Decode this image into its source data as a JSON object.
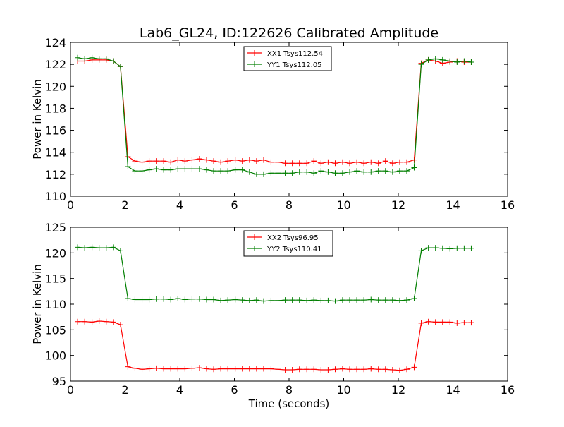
{
  "title": "Lab6_GL24, ID:122626 Calibrated Amplitude",
  "chart_data": [
    {
      "type": "line",
      "ylabel": "Power in Kelvin",
      "xlabel": "",
      "xlim": [
        0,
        16
      ],
      "ylim": [
        110,
        124
      ],
      "xticks": [
        "0",
        "2",
        "4",
        "6",
        "8",
        "10",
        "12",
        "14",
        "16"
      ],
      "yticks": [
        "110",
        "112",
        "114",
        "116",
        "118",
        "120",
        "122",
        "124"
      ],
      "legend_position": "upper-center",
      "x": [
        0.26,
        0.52,
        0.79,
        1.05,
        1.31,
        1.57,
        1.83,
        2.1,
        2.36,
        2.62,
        2.88,
        3.14,
        3.41,
        3.67,
        3.93,
        4.19,
        4.45,
        4.72,
        4.98,
        5.24,
        5.5,
        5.76,
        6.03,
        6.29,
        6.55,
        6.81,
        7.07,
        7.34,
        7.6,
        7.86,
        8.12,
        8.38,
        8.65,
        8.91,
        9.17,
        9.43,
        9.69,
        9.96,
        10.22,
        10.48,
        10.74,
        11.0,
        11.27,
        11.53,
        11.79,
        12.05,
        12.31,
        12.58,
        12.84,
        13.1,
        13.36,
        13.62,
        13.89,
        14.15,
        14.41,
        14.67
      ],
      "series": [
        {
          "name": "XX1 Tsys112.54",
          "color": "#ff0000",
          "values": [
            122.3,
            122.3,
            122.4,
            122.4,
            122.4,
            122.3,
            121.8,
            113.6,
            113.2,
            113.1,
            113.2,
            113.2,
            113.2,
            113.1,
            113.3,
            113.2,
            113.3,
            113.4,
            113.3,
            113.2,
            113.1,
            113.2,
            113.3,
            113.2,
            113.3,
            113.2,
            113.3,
            113.1,
            113.1,
            113.0,
            113.0,
            113.0,
            113.0,
            113.2,
            113.0,
            113.1,
            113.0,
            113.1,
            113.0,
            113.1,
            113.0,
            113.1,
            113.0,
            113.2,
            113.0,
            113.1,
            113.1,
            113.3,
            122.1,
            122.4,
            122.3,
            122.1,
            122.2,
            122.3,
            122.2,
            122.2
          ]
        },
        {
          "name": "YY1 Tsys112.05",
          "color": "#007f00",
          "values": [
            122.6,
            122.5,
            122.6,
            122.5,
            122.5,
            122.3,
            121.8,
            112.7,
            112.3,
            112.3,
            112.4,
            112.5,
            112.4,
            112.4,
            112.5,
            112.5,
            112.5,
            112.5,
            112.4,
            112.3,
            112.3,
            112.3,
            112.4,
            112.4,
            112.2,
            112.0,
            112.0,
            112.1,
            112.1,
            112.1,
            112.1,
            112.2,
            112.2,
            112.1,
            112.3,
            112.2,
            112.1,
            112.1,
            112.2,
            112.3,
            112.2,
            112.2,
            112.3,
            112.3,
            112.2,
            112.3,
            112.3,
            112.6,
            122.0,
            122.4,
            122.5,
            122.4,
            122.3,
            122.2,
            122.3,
            122.2
          ]
        }
      ]
    },
    {
      "type": "line",
      "ylabel": "Power in Kelvin",
      "xlabel": "Time (seconds)",
      "xlim": [
        0,
        16
      ],
      "ylim": [
        95,
        125
      ],
      "xticks": [
        "0",
        "2",
        "4",
        "6",
        "8",
        "10",
        "12",
        "14",
        "16"
      ],
      "yticks": [
        "95",
        "100",
        "105",
        "110",
        "115",
        "120",
        "125"
      ],
      "legend_position": "upper-center",
      "x": [
        0.26,
        0.52,
        0.79,
        1.05,
        1.31,
        1.57,
        1.83,
        2.1,
        2.36,
        2.62,
        2.88,
        3.14,
        3.41,
        3.67,
        3.93,
        4.19,
        4.45,
        4.72,
        4.98,
        5.24,
        5.5,
        5.76,
        6.03,
        6.29,
        6.55,
        6.81,
        7.07,
        7.34,
        7.6,
        7.86,
        8.12,
        8.38,
        8.65,
        8.91,
        9.17,
        9.43,
        9.69,
        9.96,
        10.22,
        10.48,
        10.74,
        11.0,
        11.27,
        11.53,
        11.79,
        12.05,
        12.31,
        12.58,
        12.84,
        13.1,
        13.36,
        13.62,
        13.89,
        14.15,
        14.41,
        14.67
      ],
      "series": [
        {
          "name": "XX2 Tsys96.95",
          "color": "#ff0000",
          "values": [
            106.6,
            106.6,
            106.5,
            106.7,
            106.6,
            106.5,
            106.0,
            97.8,
            97.5,
            97.3,
            97.4,
            97.5,
            97.4,
            97.4,
            97.4,
            97.4,
            97.5,
            97.6,
            97.4,
            97.3,
            97.4,
            97.4,
            97.4,
            97.4,
            97.4,
            97.4,
            97.4,
            97.4,
            97.3,
            97.2,
            97.2,
            97.3,
            97.3,
            97.3,
            97.2,
            97.2,
            97.3,
            97.4,
            97.3,
            97.3,
            97.3,
            97.4,
            97.3,
            97.3,
            97.2,
            97.1,
            97.3,
            97.7,
            106.3,
            106.6,
            106.5,
            106.5,
            106.5,
            106.3,
            106.4,
            106.4
          ]
        },
        {
          "name": "YY2 Tsys110.41",
          "color": "#007f00",
          "values": [
            121.1,
            121.0,
            121.1,
            121.0,
            121.0,
            121.1,
            120.4,
            111.1,
            110.9,
            110.9,
            110.9,
            111.0,
            111.0,
            110.9,
            111.1,
            110.9,
            111.0,
            111.0,
            110.9,
            110.9,
            110.7,
            110.8,
            110.9,
            110.8,
            110.7,
            110.8,
            110.6,
            110.7,
            110.7,
            110.8,
            110.8,
            110.8,
            110.7,
            110.8,
            110.7,
            110.7,
            110.6,
            110.8,
            110.8,
            110.8,
            110.8,
            110.9,
            110.8,
            110.8,
            110.8,
            110.7,
            110.8,
            111.1,
            120.4,
            121.0,
            121.0,
            120.9,
            120.8,
            120.9,
            120.9,
            120.9
          ]
        }
      ]
    }
  ]
}
